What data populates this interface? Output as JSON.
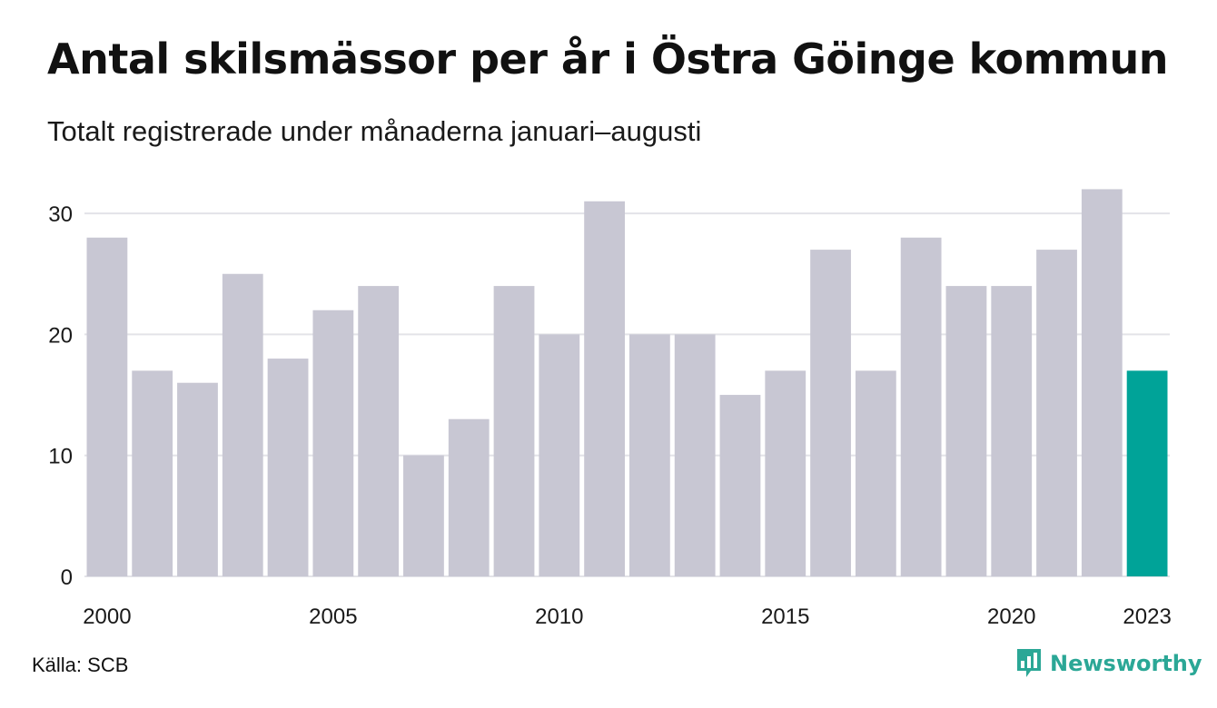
{
  "title": "Antal skilsmässor per år i Östra Göinge kommun",
  "subtitle": "Totalt registrerade under månaderna januari–augusti",
  "source": "Källa: SCB",
  "brand": {
    "name": "Newsworthy",
    "icon": "newsworthy-logo-icon",
    "color": "#2ba796"
  },
  "colors": {
    "bar": "#c8c7d3",
    "highlight": "#00a398",
    "grid": "#e3e3e8"
  },
  "chart_data": {
    "type": "bar",
    "x": [
      2000,
      2001,
      2002,
      2003,
      2004,
      2005,
      2006,
      2007,
      2008,
      2009,
      2010,
      2011,
      2012,
      2013,
      2014,
      2015,
      2016,
      2017,
      2018,
      2019,
      2020,
      2021,
      2022,
      2023
    ],
    "values": [
      28,
      17,
      16,
      25,
      18,
      22,
      24,
      10,
      13,
      24,
      20,
      31,
      20,
      20,
      15,
      17,
      27,
      17,
      28,
      24,
      24,
      27,
      32,
      17
    ],
    "highlight": [
      2023
    ],
    "xticks": [
      "2000",
      "2005",
      "2010",
      "2015",
      "2020",
      "2023"
    ],
    "yticks": [
      "0",
      "10",
      "20",
      "30"
    ],
    "ylim": [
      0,
      32
    ],
    "grid": true,
    "xlabel": "",
    "ylabel": ""
  }
}
